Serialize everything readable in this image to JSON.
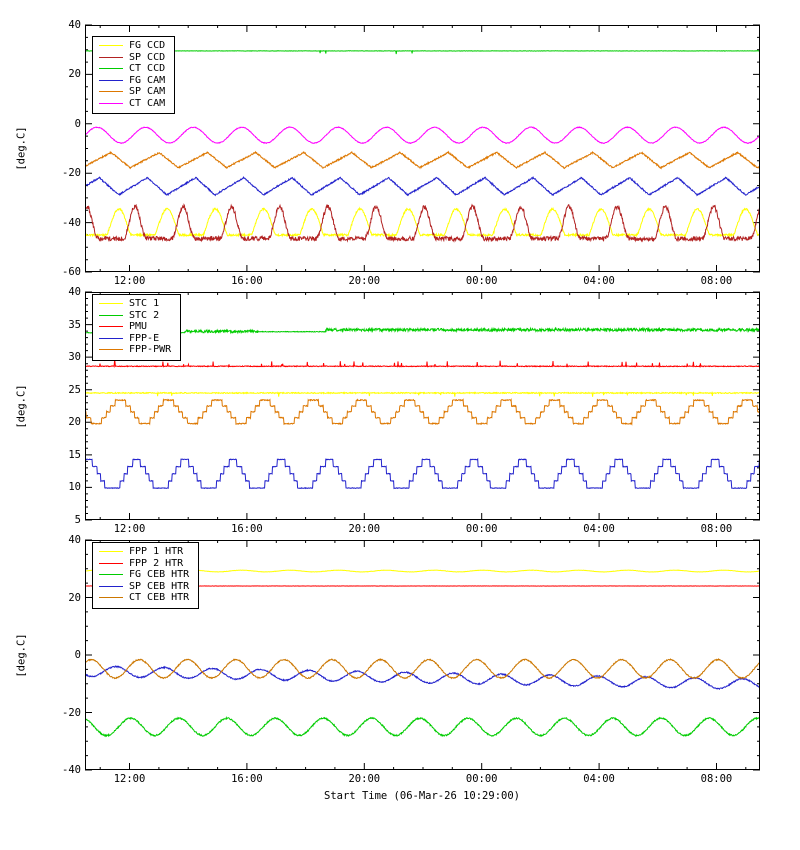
{
  "figure": {
    "background": "#ffffff",
    "axis_color": "#000000",
    "xlabel": "Start Time (06-Mar-26 10:29:00)",
    "ylabel": "[deg.C]",
    "x_range_h": [
      0,
      23
    ],
    "x_ticks": {
      "labels": [
        "12:00",
        "16:00",
        "20:00",
        "00:00",
        "04:00",
        "08:00"
      ],
      "hours_from_start": [
        1.5167,
        5.5167,
        9.5167,
        13.5167,
        17.5167,
        21.5167
      ]
    },
    "x_minor_first_h": 0.5167,
    "x_minor_step_h": 1
  },
  "chart_data": [
    {
      "id": "ccd-cam-temperatures",
      "type": "line",
      "ylabel": "[deg.C]",
      "ylim": [
        -60,
        40
      ],
      "yticks": [
        -60,
        -40,
        -20,
        0,
        20,
        40
      ],
      "y_minor_step": 5,
      "legend_position": "top-left",
      "series": [
        {
          "name": "FG CCD",
          "color": "#ffff00",
          "waveform": "pulse",
          "base": -45,
          "amp": 10.5,
          "sharp": 1.2,
          "period_h": 1.643,
          "phase_h": 0.9,
          "jitter": 0.4
        },
        {
          "name": "SP CCD",
          "color": "#b22222",
          "waveform": "pulse",
          "base": -46.5,
          "amp": 13,
          "sharp": 2.2,
          "period_h": 1.643,
          "phase_h": 0.35,
          "jitter": 0.9
        },
        {
          "name": "CT CCD",
          "color": "#00cc00",
          "waveform": "flat",
          "level": 29.5,
          "jitter": 0.06,
          "spike_p": 0.003,
          "spike_amp": -1.2
        },
        {
          "name": "FG CAM",
          "color": "#2222cc",
          "waveform": "sawtooth",
          "base": -28.8,
          "amp": 7,
          "rise": 0.6,
          "period_h": 1.643,
          "phase_h": 0.5,
          "jitter": 0.3
        },
        {
          "name": "SP CAM",
          "color": "#dd7700",
          "waveform": "sawtooth",
          "base": -17.8,
          "amp": 6.2,
          "rise": 0.6,
          "period_h": 1.643,
          "phase_h": 0.1,
          "jitter": 0.3
        },
        {
          "name": "CT CAM",
          "color": "#ff00ff",
          "waveform": "sine",
          "mean": -4.6,
          "amp": 3.2,
          "period_h": 1.643,
          "phase_h": 0.0,
          "jitter": 0.15
        }
      ]
    },
    {
      "id": "electronics-temperatures",
      "type": "line",
      "ylabel": "[deg.C]",
      "ylim": [
        5,
        40
      ],
      "yticks": [
        5,
        10,
        15,
        20,
        25,
        30,
        35,
        40
      ],
      "y_minor_step": 1,
      "legend_position": "top-left",
      "series": [
        {
          "name": "STC 1",
          "color": "#ffff00",
          "waveform": "flat",
          "level": 24.5,
          "jitter": 0.08,
          "spike_p": 0.01,
          "spike_amp": -0.5
        },
        {
          "name": "STC 2",
          "color": "#00cc00",
          "waveform": "segments",
          "segments": [
            [
              0,
              3.4,
              33.75,
              0.04
            ],
            [
              3.4,
              5.9,
              33.95,
              0.22
            ],
            [
              5.9,
              8.2,
              33.9,
              0.05
            ],
            [
              8.2,
              23.1,
              34.2,
              0.22
            ]
          ]
        },
        {
          "name": "PMU",
          "color": "#ff0000",
          "waveform": "flat",
          "level": 28.6,
          "jitter": 0.06,
          "spike_p": 0.025,
          "spike_amp": 0.55
        },
        {
          "name": "FPP-E",
          "color": "#2222cc",
          "waveform": "squaresine",
          "mean": 11.7,
          "amp": 2.35,
          "quant": 1.1,
          "period_h": 1.643,
          "phase_h": 0.3,
          "jitter": 0.05
        },
        {
          "name": "FPP-PWR",
          "color": "#dd7700",
          "waveform": "squaresine",
          "mean": 21.6,
          "amp": 1.75,
          "quant": 0.9,
          "period_h": 1.643,
          "phase_h": 0.85,
          "jitter": 0.08
        }
      ]
    },
    {
      "id": "heater-temperatures",
      "type": "line",
      "ylabel": "[deg.C]",
      "ylim": [
        -40,
        40
      ],
      "yticks": [
        -40,
        -20,
        0,
        20,
        40
      ],
      "y_minor_step": 5,
      "legend_position": "top-left",
      "series": [
        {
          "name": "FPP 1 HTR",
          "color": "#ffff00",
          "waveform": "sine",
          "mean": 29.2,
          "amp": 0.3,
          "period_h": 1.643,
          "phase_h": 0,
          "jitter": 0.05
        },
        {
          "name": "FPP 2 HTR",
          "color": "#ff0000",
          "waveform": "flat",
          "level": 24.0,
          "jitter": 0.04
        },
        {
          "name": "FG CEB HTR",
          "color": "#00cc00",
          "waveform": "sine",
          "mean": -25,
          "amp": 3,
          "period_h": 1.643,
          "phase_h": 0.5,
          "jitter": 0.25
        },
        {
          "name": "SP CEB HTR",
          "color": "#2222cc",
          "waveform": "sine",
          "mean": -5.6,
          "amp": 1.8,
          "drift": -0.2,
          "period_h": 1.643,
          "phase_h": 1.0,
          "jitter": 0.2
        },
        {
          "name": "CT CEB HTR",
          "color": "#cc7700",
          "waveform": "sine",
          "mean": -4.8,
          "amp": 3.2,
          "period_h": 1.643,
          "phase_h": 0.2,
          "jitter": 0.2
        }
      ]
    }
  ]
}
